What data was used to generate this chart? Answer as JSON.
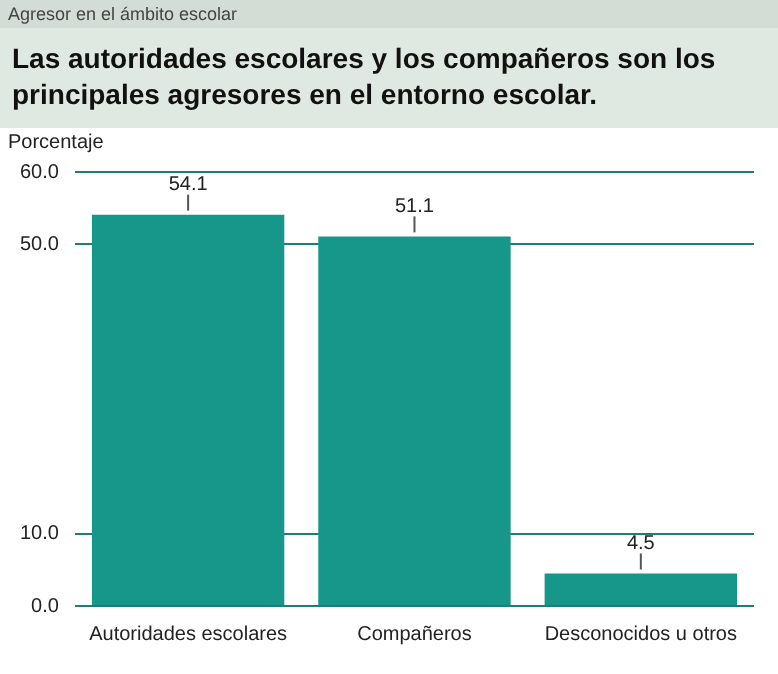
{
  "chart_data": {
    "type": "bar",
    "subtitle": "Agresor en el ámbito escolar",
    "title": "Las autoridades escolares y los compañeros son los principales agresores en el entorno escolar.",
    "ylabel": "Porcentaje",
    "categories": [
      "Autoridades escolares",
      "Compañeros",
      "Desconocidos u otros"
    ],
    "values": [
      54.1,
      51.1,
      4.5
    ],
    "color": "#17978a",
    "ylim": [
      0,
      60
    ],
    "yticks": [
      {
        "value": 0,
        "label": "0.0"
      },
      {
        "value": 10,
        "label": "10.0"
      },
      {
        "value": 50,
        "label": "50.0"
      },
      {
        "value": 60,
        "label": "60.0"
      }
    ],
    "grid": "y",
    "data_labels": true
  }
}
